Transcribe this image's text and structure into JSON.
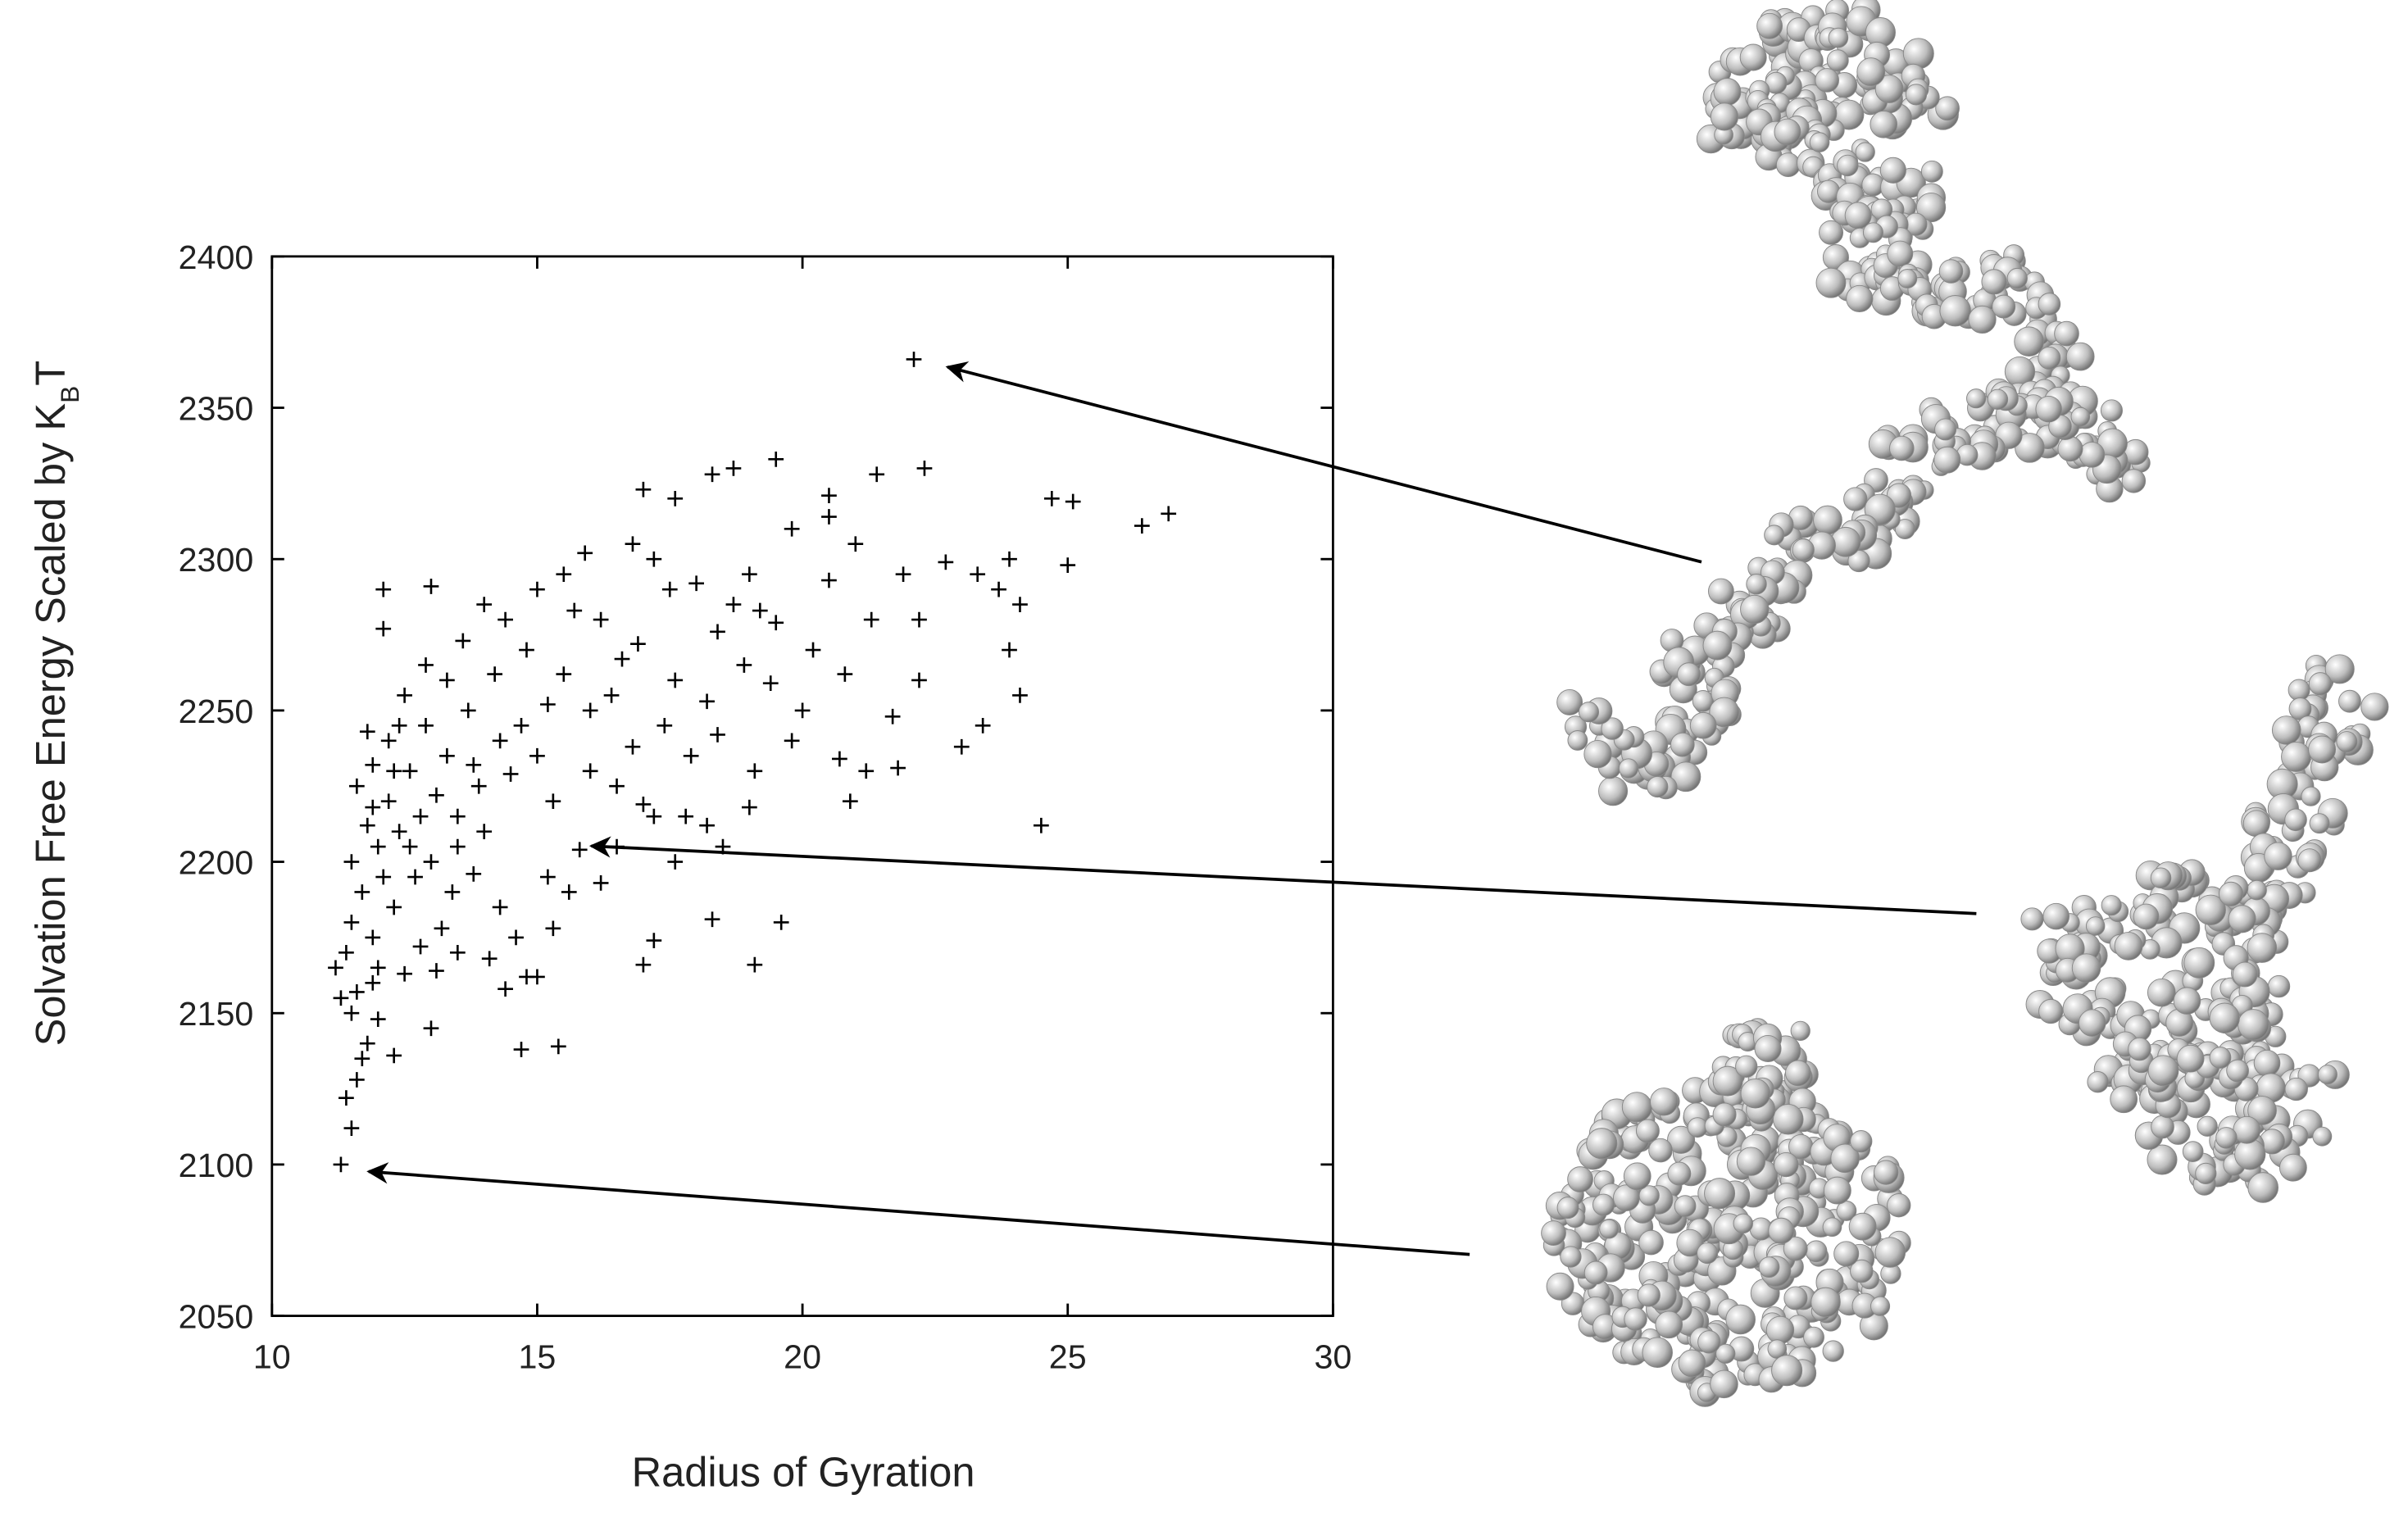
{
  "chart_data": {
    "type": "scatter",
    "xlabel": "Radius of Gyration",
    "ylabel": {
      "text": "Solvation Free Energy Scaled by K",
      "subscript": "B",
      "suffix": "T"
    },
    "xlim": [
      10,
      30
    ],
    "xticks": [
      10,
      15,
      20,
      25,
      30
    ],
    "ylim": [
      2050,
      2400
    ],
    "yticks": [
      2050,
      2100,
      2150,
      2200,
      2250,
      2300,
      2350,
      2400
    ],
    "color": "#000000",
    "x": [
      22.1,
      18.7,
      17.0,
      19.5,
      21.4,
      22.3,
      17.6,
      18.3,
      24.7,
      25.1,
      26.4,
      26.9,
      20.5,
      20.5,
      19.8,
      23.3,
      23.9,
      23.7,
      25.0,
      22.7,
      21.9,
      24.1,
      23.9,
      24.1,
      22.2,
      24.5,
      23.0,
      23.4,
      21.7,
      22.2,
      20.8,
      21.2,
      21.8,
      20.9,
      19.6,
      19.1,
      18.3,
      17.2,
      17.0,
      15.4,
      14.7,
      13.0,
      12.3,
      12.0,
      11.3,
      11.5,
      11.4,
      11.6,
      11.7,
      11.8,
      11.5,
      11.3,
      11.2,
      11.6,
      11.9,
      12.5,
      13.1,
      13.5,
      14.1,
      15.0,
      14.8,
      14.4,
      15.3,
      12.1,
      13.0,
      12.1,
      14.0,
      15.0,
      15.5,
      15.9,
      16.8,
      17.2,
      18.0,
      18.7,
      19.2,
      19.5,
      16.2,
      16.9,
      17.6,
      18.2,
      18.9,
      19.4,
      20.0,
      19.1,
      19.0,
      18.5,
      17.6,
      17.8,
      17.0,
      16.5,
      16.8,
      17.4,
      16.0,
      15.5,
      14.8,
      14.4,
      14.2,
      13.7,
      13.3,
      12.9,
      12.5,
      12.2,
      11.9,
      11.6,
      11.8,
      11.5,
      11.7,
      11.5,
      11.9,
      12.3,
      12.7,
      13.0,
      13.4,
      13.8,
      14.3,
      14.0,
      13.5,
      13.1,
      12.6,
      12.2,
      12.0,
      12.4,
      12.8,
      13.3,
      13.8,
      14.5,
      15.0,
      15.3,
      15.8,
      15.2,
      15.6,
      16.2,
      16.5,
      17.2,
      14.7,
      15.2,
      14.3,
      13.9,
      11.8,
      12.3,
      12.1,
      13.2,
      12.8,
      14.6,
      12.0,
      11.4,
      13.6,
      12.9,
      16.4,
      17.9,
      18.4,
      19.8,
      20.7,
      20.5,
      21.0,
      21.3,
      20.2,
      19.0,
      18.4,
      17.5,
      16.6,
      15.7,
      18.2,
      16.0,
      13.5,
      12.6,
      11.9,
      12.4
    ],
    "y": [
      2366,
      2330,
      2323,
      2333,
      2328,
      2330,
      2320,
      2328,
      2320,
      2319,
      2311,
      2315,
      2321,
      2314,
      2310,
      2295,
      2300,
      2290,
      2298,
      2299,
      2295,
      2285,
      2270,
      2255,
      2280,
      2212,
      2238,
      2245,
      2248,
      2260,
      2262,
      2230,
      2231,
      2220,
      2180,
      2166,
      2181,
      2174,
      2166,
      2139,
      2138,
      2145,
      2136,
      2148,
      2100,
      2112,
      2122,
      2128,
      2135,
      2140,
      2150,
      2155,
      2165,
      2157,
      2160,
      2163,
      2164,
      2170,
      2168,
      2162,
      2162,
      2158,
      2178,
      2290,
      2291,
      2277,
      2285,
      2290,
      2295,
      2302,
      2305,
      2300,
      2292,
      2285,
      2283,
      2279,
      2280,
      2272,
      2260,
      2253,
      2265,
      2259,
      2250,
      2230,
      2218,
      2205,
      2200,
      2215,
      2219,
      2225,
      2238,
      2245,
      2250,
      2262,
      2270,
      2280,
      2262,
      2250,
      2260,
      2245,
      2255,
      2240,
      2232,
      2225,
      2212,
      2200,
      2190,
      2180,
      2175,
      2185,
      2195,
      2200,
      2190,
      2196,
      2185,
      2210,
      2215,
      2222,
      2230,
      2220,
      2205,
      2210,
      2215,
      2235,
      2232,
      2229,
      2235,
      2220,
      2204,
      2195,
      2190,
      2193,
      2205,
      2215,
      2245,
      2252,
      2240,
      2225,
      2243,
      2230,
      2195,
      2178,
      2172,
      2175,
      2165,
      2170,
      2273,
      2265,
      2255,
      2235,
      2242,
      2240,
      2234,
      2293,
      2305,
      2280,
      2270,
      2295,
      2276,
      2290,
      2267,
      2283,
      2212,
      2230,
      2205,
      2205,
      2218,
      2245
    ]
  }
}
